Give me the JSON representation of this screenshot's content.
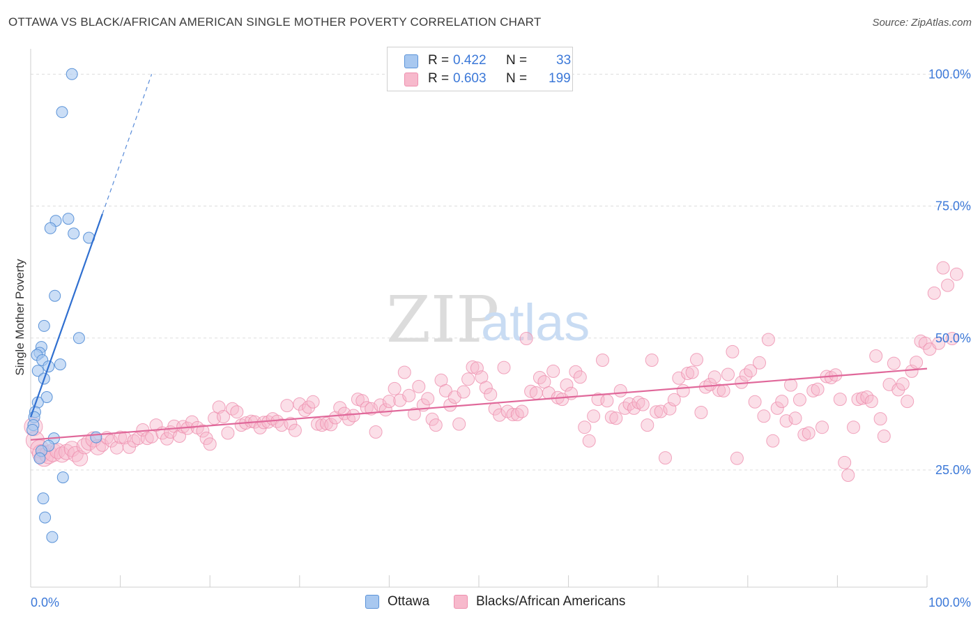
{
  "title": "OTTAWA VS BLACK/AFRICAN AMERICAN SINGLE MOTHER POVERTY CORRELATION CHART",
  "source": "Source: ZipAtlas.com",
  "watermark": {
    "zip": "ZIP",
    "atlas": "atlas"
  },
  "legend": {
    "ottawa": {
      "r_label": "R =",
      "r_value": "0.422",
      "n_label": "N =",
      "n_value": "33"
    },
    "black": {
      "r_label": "R =",
      "r_value": "0.603",
      "n_label": "N =",
      "n_value": "199"
    }
  },
  "colors": {
    "ottawa_fill": "#a8c8f0",
    "ottawa_stroke": "#5b93d8",
    "ottawa_line": "#2f6fd0",
    "black_fill": "#f7b9cc",
    "black_stroke": "#ee8fae",
    "black_line": "#e0689a",
    "axis_text": "#3b78d8"
  },
  "chart_data": {
    "type": "scatter",
    "title": "OTTAWA VS BLACK/AFRICAN AMERICAN SINGLE MOTHER POVERTY CORRELATION CHART",
    "xlabel": "",
    "ylabel": "Single Mother Poverty",
    "x_tick_labels": [
      "0.0%",
      "100.0%"
    ],
    "y_tick_labels": [
      "25.0%",
      "50.0%",
      "75.0%",
      "100.0%"
    ],
    "y_ticks": [
      25,
      50,
      75,
      100
    ],
    "xlim": [
      0,
      100
    ],
    "ylim": [
      2.8,
      104.8
    ],
    "grid": true,
    "legend_position": "top-center",
    "series": [
      {
        "name": "Ottawa",
        "r": 0.422,
        "n": 33,
        "trend": {
          "x0": 0,
          "y0": 35,
          "x1": 8.0,
          "y1": 73.5,
          "dash_to_x": 13.5,
          "dash_to_y": 100
        },
        "points": [
          [
            4.6,
            100
          ],
          [
            3.5,
            92.8
          ],
          [
            4.2,
            72.6
          ],
          [
            2.8,
            72.2
          ],
          [
            2.2,
            70.8
          ],
          [
            4.8,
            69.8
          ],
          [
            6.5,
            69.0
          ],
          [
            2.7,
            58.0
          ],
          [
            1.5,
            52.3
          ],
          [
            5.4,
            50.0
          ],
          [
            1.2,
            48.3
          ],
          [
            1.0,
            47.2
          ],
          [
            0.7,
            46.8
          ],
          [
            1.3,
            45.8
          ],
          [
            3.3,
            45.0
          ],
          [
            2.0,
            44.6
          ],
          [
            0.8,
            43.8
          ],
          [
            1.5,
            42.3
          ],
          [
            1.8,
            38.8
          ],
          [
            0.8,
            37.8
          ],
          [
            0.5,
            36.0
          ],
          [
            0.4,
            35.0
          ],
          [
            0.3,
            33.5
          ],
          [
            0.2,
            32.6
          ],
          [
            2.6,
            31.0
          ],
          [
            7.3,
            31.2
          ],
          [
            2.0,
            29.6
          ],
          [
            1.2,
            28.6
          ],
          [
            1.0,
            27.2
          ],
          [
            3.6,
            23.6
          ],
          [
            1.4,
            19.6
          ],
          [
            1.6,
            16.0
          ],
          [
            2.4,
            12.3
          ]
        ]
      },
      {
        "name": "Blacks/African Americans",
        "r": 0.603,
        "n": 199,
        "trend": {
          "x0": 0,
          "y0": 30.7,
          "x1": 100,
          "y1": 44.2
        },
        "points": [
          [
            0.3,
            33.2
          ],
          [
            0.5,
            30.6
          ],
          [
            1.0,
            29.0
          ],
          [
            1.2,
            28.1
          ],
          [
            1.5,
            27.4
          ],
          [
            2.0,
            27.9
          ],
          [
            2.5,
            28.3
          ],
          [
            3.0,
            28.6
          ],
          [
            3.5,
            27.9
          ],
          [
            4.0,
            28.4
          ],
          [
            4.6,
            29.0
          ],
          [
            5.0,
            28.0
          ],
          [
            5.5,
            27.2
          ],
          [
            6.0,
            29.5
          ],
          [
            6.5,
            30.2
          ],
          [
            7.0,
            30.8
          ],
          [
            7.5,
            29.3
          ],
          [
            8.0,
            29.7
          ],
          [
            8.5,
            31.1
          ],
          [
            9.0,
            30.5
          ],
          [
            9.6,
            29.2
          ],
          [
            10.0,
            31.2
          ],
          [
            10.5,
            31.1
          ],
          [
            11.0,
            29.3
          ],
          [
            11.5,
            30.5
          ],
          [
            12.0,
            31.0
          ],
          [
            12.5,
            32.6
          ],
          [
            13.0,
            31.0
          ],
          [
            13.5,
            31.3
          ],
          [
            14.0,
            33.5
          ],
          [
            14.7,
            32.0
          ],
          [
            15.2,
            30.9
          ],
          [
            15.6,
            32.2
          ],
          [
            16.0,
            33.3
          ],
          [
            16.6,
            31.4
          ],
          [
            17.0,
            33.2
          ],
          [
            17.5,
            32.9
          ],
          [
            18.0,
            34.1
          ],
          [
            18.6,
            33.0
          ],
          [
            19.2,
            32.4
          ],
          [
            19.6,
            31.0
          ],
          [
            20.0,
            29.9
          ],
          [
            20.5,
            34.8
          ],
          [
            21.0,
            36.9
          ],
          [
            21.5,
            35.1
          ],
          [
            22.0,
            32.0
          ],
          [
            22.5,
            36.6
          ],
          [
            23.0,
            36.0
          ],
          [
            23.5,
            33.5
          ],
          [
            24.0,
            33.9
          ],
          [
            24.6,
            34.2
          ],
          [
            25.0,
            34.1
          ],
          [
            25.6,
            33.0
          ],
          [
            26.0,
            34.0
          ],
          [
            26.5,
            34.1
          ],
          [
            27.0,
            34.7
          ],
          [
            27.5,
            34.2
          ],
          [
            28.0,
            33.5
          ],
          [
            28.6,
            37.2
          ],
          [
            29.0,
            33.8
          ],
          [
            29.5,
            32.5
          ],
          [
            30.0,
            37.5
          ],
          [
            30.6,
            36.3
          ],
          [
            31.0,
            36.9
          ],
          [
            31.5,
            37.9
          ],
          [
            32.0,
            33.7
          ],
          [
            32.5,
            33.5
          ],
          [
            33.0,
            33.8
          ],
          [
            33.5,
            33.6
          ],
          [
            34.0,
            34.9
          ],
          [
            34.5,
            36.8
          ],
          [
            35.0,
            35.7
          ],
          [
            35.5,
            34.6
          ],
          [
            36.0,
            35.3
          ],
          [
            36.5,
            38.4
          ],
          [
            37.0,
            38.1
          ],
          [
            37.5,
            36.8
          ],
          [
            38.0,
            36.6
          ],
          [
            38.5,
            32.2
          ],
          [
            39.0,
            37.3
          ],
          [
            39.6,
            36.4
          ],
          [
            40.0,
            38.0
          ],
          [
            40.6,
            40.4
          ],
          [
            41.2,
            38.2
          ],
          [
            41.7,
            43.5
          ],
          [
            42.2,
            39.1
          ],
          [
            42.8,
            35.6
          ],
          [
            43.3,
            40.8
          ],
          [
            43.8,
            37.3
          ],
          [
            44.3,
            38.5
          ],
          [
            44.8,
            34.6
          ],
          [
            45.2,
            33.5
          ],
          [
            45.8,
            42.0
          ],
          [
            46.3,
            40.0
          ],
          [
            46.8,
            37.3
          ],
          [
            47.3,
            38.8
          ],
          [
            47.8,
            33.7
          ],
          [
            48.3,
            39.8
          ],
          [
            48.8,
            42.2
          ],
          [
            49.3,
            44.5
          ],
          [
            49.8,
            44.3
          ],
          [
            50.3,
            42.6
          ],
          [
            50.8,
            40.6
          ],
          [
            51.3,
            39.3
          ],
          [
            51.8,
            36.6
          ],
          [
            52.3,
            35.4
          ],
          [
            52.8,
            44.4
          ],
          [
            53.2,
            36.1
          ],
          [
            53.8,
            35.5
          ],
          [
            54.3,
            35.5
          ],
          [
            54.8,
            36.1
          ],
          [
            55.3,
            49.9
          ],
          [
            55.8,
            39.9
          ],
          [
            56.4,
            39.6
          ],
          [
            56.8,
            42.5
          ],
          [
            57.3,
            41.7
          ],
          [
            57.8,
            39.6
          ],
          [
            58.3,
            43.7
          ],
          [
            58.8,
            38.7
          ],
          [
            59.3,
            38.4
          ],
          [
            59.8,
            41.1
          ],
          [
            60.3,
            39.5
          ],
          [
            60.8,
            43.6
          ],
          [
            61.3,
            42.6
          ],
          [
            61.8,
            33.1
          ],
          [
            62.3,
            30.5
          ],
          [
            62.8,
            35.2
          ],
          [
            63.3,
            38.4
          ],
          [
            63.8,
            45.8
          ],
          [
            64.3,
            38.1
          ],
          [
            64.8,
            35.0
          ],
          [
            65.3,
            34.8
          ],
          [
            65.8,
            40.0
          ],
          [
            66.3,
            36.7
          ],
          [
            66.8,
            37.5
          ],
          [
            67.3,
            36.7
          ],
          [
            67.8,
            37.8
          ],
          [
            68.3,
            37.4
          ],
          [
            68.8,
            33.5
          ],
          [
            69.3,
            45.8
          ],
          [
            69.8,
            36.0
          ],
          [
            70.3,
            36.1
          ],
          [
            70.8,
            27.3
          ],
          [
            71.3,
            36.6
          ],
          [
            71.8,
            38.3
          ],
          [
            72.3,
            42.4
          ],
          [
            72.8,
            40.0
          ],
          [
            73.3,
            43.3
          ],
          [
            73.8,
            43.5
          ],
          [
            74.3,
            45.9
          ],
          [
            74.8,
            35.9
          ],
          [
            75.3,
            40.7
          ],
          [
            75.8,
            41.2
          ],
          [
            76.3,
            42.6
          ],
          [
            76.8,
            40.1
          ],
          [
            77.3,
            40.0
          ],
          [
            77.8,
            43.1
          ],
          [
            78.3,
            47.4
          ],
          [
            78.8,
            27.2
          ],
          [
            79.3,
            41.6
          ],
          [
            79.8,
            43.0
          ],
          [
            80.3,
            43.8
          ],
          [
            80.8,
            37.9
          ],
          [
            81.3,
            45.3
          ],
          [
            81.8,
            35.2
          ],
          [
            82.3,
            49.7
          ],
          [
            82.8,
            30.5
          ],
          [
            83.3,
            36.7
          ],
          [
            83.8,
            38.0
          ],
          [
            84.3,
            34.3
          ],
          [
            84.8,
            41.1
          ],
          [
            85.3,
            34.8
          ],
          [
            85.8,
            38.3
          ],
          [
            86.3,
            31.7
          ],
          [
            86.8,
            32.0
          ],
          [
            87.3,
            40.0
          ],
          [
            87.8,
            40.3
          ],
          [
            88.3,
            33.1
          ],
          [
            88.8,
            42.7
          ],
          [
            89.3,
            42.5
          ],
          [
            89.8,
            43.0
          ],
          [
            90.3,
            38.4
          ],
          [
            90.8,
            26.4
          ],
          [
            91.2,
            24.0
          ],
          [
            91.8,
            33.1
          ],
          [
            92.3,
            38.4
          ],
          [
            92.8,
            38.6
          ],
          [
            93.3,
            38.8
          ],
          [
            93.8,
            38.0
          ],
          [
            94.3,
            46.6
          ],
          [
            94.8,
            34.7
          ],
          [
            95.2,
            31.4
          ],
          [
            95.8,
            41.2
          ],
          [
            96.3,
            45.2
          ],
          [
            96.8,
            40.2
          ],
          [
            97.3,
            41.3
          ],
          [
            97.8,
            38.0
          ],
          [
            98.3,
            43.7
          ],
          [
            98.8,
            45.4
          ],
          [
            99.3,
            49.4
          ],
          [
            99.8,
            49.0
          ],
          [
            100.3,
            47.9
          ],
          [
            100.8,
            58.5
          ],
          [
            101.3,
            49.0
          ],
          [
            101.8,
            63.3
          ],
          [
            102.3,
            60.0
          ],
          [
            102.8,
            49.9
          ],
          [
            103.3,
            62.1
          ]
        ]
      }
    ]
  },
  "axes": {
    "ylabel": "Single Mother Poverty",
    "x_ticks": [
      "0.0%",
      "100.0%"
    ],
    "y_ticks": [
      "25.0%",
      "50.0%",
      "75.0%",
      "100.0%"
    ]
  },
  "bottom_legend": {
    "ottawa": "Ottawa",
    "black": "Blacks/African Americans"
  }
}
